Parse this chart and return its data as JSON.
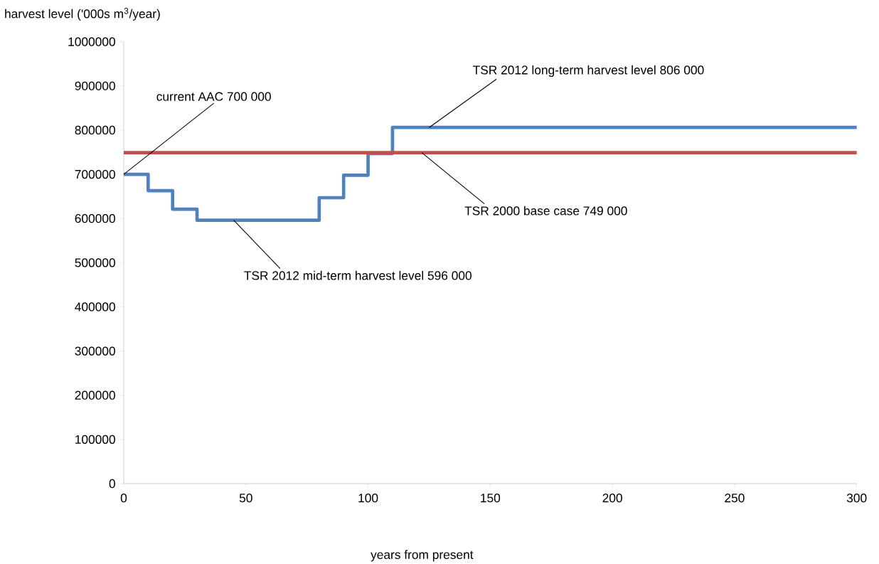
{
  "chart_data": {
    "type": "step",
    "xlabel": "years from present",
    "ylabel": "harvest level ('000s m$^{3}$/year)",
    "xlim": [
      0,
      300
    ],
    "xticks": [
      0,
      50,
      100,
      150,
      200,
      250,
      300
    ],
    "ylim": [
      0,
      1000000
    ],
    "yticks": [
      0,
      100000,
      200000,
      300000,
      400000,
      500000,
      600000,
      700000,
      800000,
      900000,
      1000000
    ],
    "series": [
      {
        "color": "#4f81bd",
        "x": [
          0,
          10,
          20,
          30,
          80,
          90,
          100,
          110,
          300
        ],
        "values": [
          700000,
          663000,
          621000,
          596000,
          647000,
          698000,
          747000,
          806000,
          806000
        ]
      },
      {
        "type": "line",
        "color": "#c0504d",
        "x": [
          0,
          300
        ],
        "values": [
          749000,
          749000
        ]
      }
    ],
    "annotations": [
      {
        "text": "current  AAC 700 000",
        "x": 0,
        "y": 700000
      },
      {
        "text": "TSR 2012 mid-term harvest level 596 000",
        "x": 45,
        "y": 596000
      },
      {
        "text": "TSR 2012 long-term harvest level 806 000",
        "x": 125,
        "y": 806000
      },
      {
        "text": "TSR 2000 base case 749 000",
        "x": 122,
        "y": 749000
      }
    ]
  }
}
